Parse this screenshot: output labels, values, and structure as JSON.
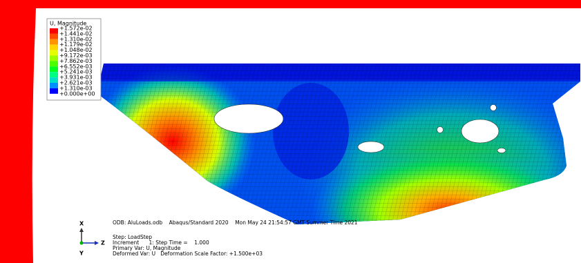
{
  "legend": {
    "title": "U, Magnitude",
    "entries": [
      "+1.572e-02",
      "+1.441e-02",
      "+1.310e-02",
      "+1.179e-02",
      "+1.048e-02",
      "+9.172e-03",
      "+7.862e-03",
      "+6.552e-03",
      "+5.241e-03",
      "+3.931e-03",
      "+2.621e-03",
      "+1.310e-03",
      "+0.000e+00"
    ],
    "colors": [
      "#ff0000",
      "#ff4a00",
      "#ff9400",
      "#ffd600",
      "#e5ff00",
      "#9cff00",
      "#4bff00",
      "#00ff1c",
      "#00ff80",
      "#00e0c8",
      "#0090ff",
      "#0000ff"
    ]
  },
  "info": {
    "header": "ODB: AluLoads.odb    Abaqus/Standard 2020    Mon May 24 21:54:57 GMT Summer Time 2021",
    "lines": [
      "Step: LoadStep",
      "Increment      1: Step Time =    1.000",
      "Primary Var: U, Magnitude",
      "Deformed Var: U   Deformation Scale Factor: +1.500e+03"
    ]
  },
  "triad": {
    "x": "X",
    "y": "Y",
    "z": "Z"
  }
}
